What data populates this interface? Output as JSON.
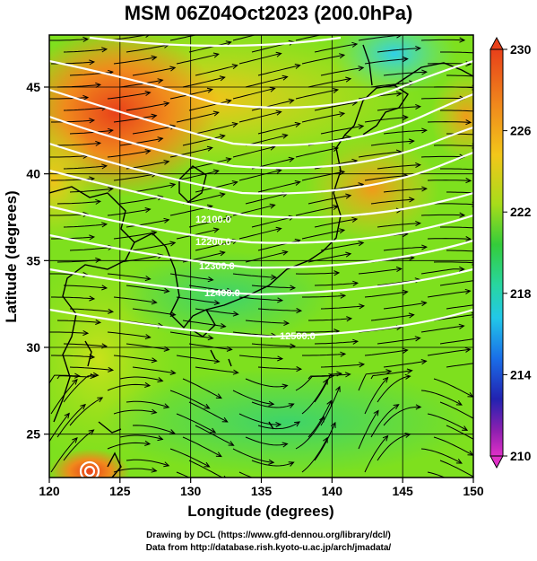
{
  "title": "MSM 06Z04Oct2023 (200.0hPa)",
  "map": {
    "xlabel": "Longitude (degrees)",
    "ylabel": "Latitude  (degrees)",
    "xlim": [
      120,
      150
    ],
    "ylim": [
      22.5,
      48
    ],
    "xticks": [
      "120",
      "125",
      "130",
      "135",
      "140",
      "145",
      "150"
    ],
    "yticks": [
      "25",
      "30",
      "35",
      "40",
      "45"
    ],
    "contour_labels": [
      "12100.0",
      "12200.0",
      "12300.0",
      "12400.0",
      "12500.0"
    ]
  },
  "colorbar": {
    "min": 210,
    "max": 230,
    "tick_labels": [
      "230",
      "226",
      "222",
      "218",
      "214",
      "210"
    ]
  },
  "credits": {
    "line1": "Drawing by DCL (https://www.gfd-dennou.org/library/dcl/)",
    "line2": "Data from http://database.rish.kyoto-u.ac.jp/arch/jmadata/"
  }
}
